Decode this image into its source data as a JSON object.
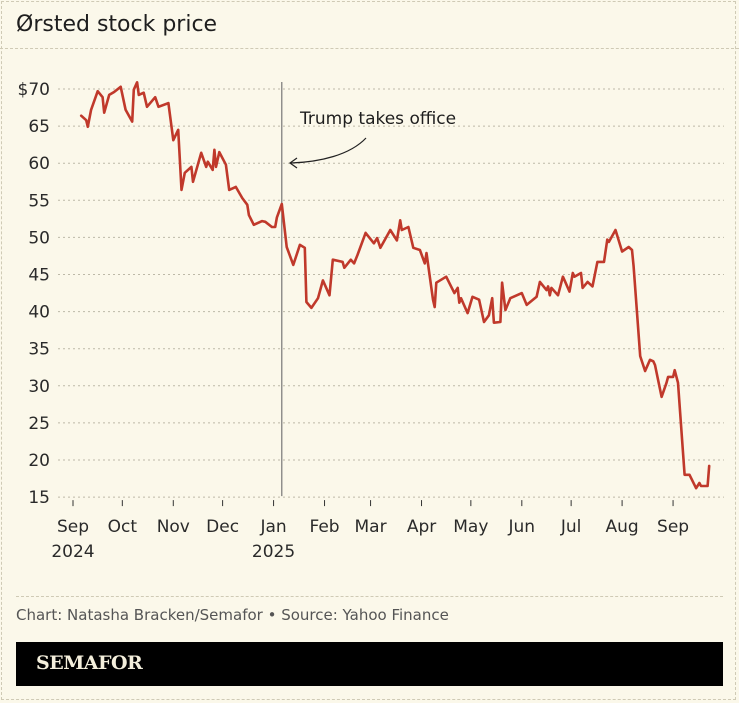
{
  "title": "Ørsted stock price",
  "credit": "Chart: Natasha Bracken/Semafor • Source: Yahoo Finance",
  "brand": "SEMAFOR",
  "chart_data": {
    "type": "line",
    "title": "Ørsted stock price",
    "xlabel": "",
    "ylabel": "",
    "ylim": [
      15,
      70
    ],
    "yticks": [
      70,
      65,
      60,
      55,
      50,
      45,
      40,
      35,
      30,
      25,
      20,
      15
    ],
    "ytick_labels": [
      "$70",
      "65",
      "60",
      "55",
      "50",
      "45",
      "40",
      "35",
      "30",
      "25",
      "20",
      "15"
    ],
    "xticks": [
      {
        "date": "2024-09-15",
        "label": "Sep",
        "year": "2024"
      },
      {
        "date": "2024-10-15",
        "label": "Oct",
        "year": ""
      },
      {
        "date": "2024-11-15",
        "label": "Nov",
        "year": ""
      },
      {
        "date": "2024-12-15",
        "label": "Dec",
        "year": ""
      },
      {
        "date": "2025-01-15",
        "label": "Jan",
        "year": "2025"
      },
      {
        "date": "2025-02-15",
        "label": "Feb",
        "year": ""
      },
      {
        "date": "2025-03-15",
        "label": "Mar",
        "year": ""
      },
      {
        "date": "2025-04-15",
        "label": "Apr",
        "year": ""
      },
      {
        "date": "2025-05-15",
        "label": "May",
        "year": ""
      },
      {
        "date": "2025-06-15",
        "label": "Jun",
        "year": ""
      },
      {
        "date": "2025-07-15",
        "label": "Jul",
        "year": ""
      },
      {
        "date": "2025-08-15",
        "label": "Aug",
        "year": ""
      },
      {
        "date": "2025-09-15",
        "label": "Sep",
        "year": ""
      }
    ],
    "grid": true,
    "line_color": "#c0392b",
    "annotation": {
      "date": "2025-01-20",
      "text": "Trump takes office"
    },
    "series": [
      {
        "x": [
          "2024-09-20",
          "2024-09-23",
          "2024-09-24",
          "2024-09-26",
          "2024-09-30",
          "2024-10-03",
          "2024-10-04",
          "2024-10-07",
          "2024-10-10",
          "2024-10-14",
          "2024-10-17",
          "2024-10-21",
          "2024-10-22",
          "2024-10-24",
          "2024-10-25",
          "2024-10-28",
          "2024-10-30",
          "2024-11-04",
          "2024-11-06",
          "2024-11-12",
          "2024-11-15",
          "2024-11-18",
          "2024-11-20",
          "2024-11-22",
          "2024-11-26",
          "2024-11-27",
          "2024-12-02",
          "2024-12-05",
          "2024-12-06",
          "2024-12-09",
          "2024-12-10",
          "2024-12-11",
          "2024-12-13",
          "2024-12-17",
          "2024-12-19",
          "2024-12-23",
          "2024-12-27",
          "2024-12-30",
          "2024-12-31",
          "2025-01-03",
          "2025-01-08",
          "2025-01-10",
          "2025-01-14",
          "2025-01-16",
          "2025-01-17",
          "2025-01-20",
          "2025-01-23",
          "2025-01-27",
          "2025-01-31",
          "2025-02-03",
          "2025-02-04",
          "2025-02-07",
          "2025-02-11",
          "2025-02-14",
          "2025-02-18",
          "2025-02-20",
          "2025-02-26",
          "2025-02-27",
          "2025-03-03",
          "2025-03-05",
          "2025-03-07",
          "2025-03-12",
          "2025-03-17",
          "2025-03-19",
          "2025-03-21",
          "2025-03-27",
          "2025-03-31",
          "2025-04-02",
          "2025-04-03",
          "2025-04-07",
          "2025-04-10",
          "2025-04-14",
          "2025-04-17",
          "2025-04-18",
          "2025-04-22",
          "2025-04-23",
          "2025-04-24",
          "2025-04-30",
          "2025-05-05",
          "2025-05-07",
          "2025-05-08",
          "2025-05-09",
          "2025-05-13",
          "2025-05-16",
          "2025-05-20",
          "2025-05-23",
          "2025-05-26",
          "2025-05-28",
          "2025-05-29",
          "2025-06-02",
          "2025-06-03",
          "2025-06-05",
          "2025-06-08",
          "2025-06-15",
          "2025-06-18",
          "2025-06-24",
          "2025-06-26",
          "2025-06-30",
          "2025-07-01",
          "2025-07-02",
          "2025-07-03",
          "2025-07-07",
          "2025-07-10",
          "2025-07-11",
          "2025-07-14",
          "2025-07-16",
          "2025-07-17",
          "2025-07-21",
          "2025-07-22",
          "2025-07-25",
          "2025-07-28",
          "2025-07-31",
          "2025-08-04",
          "2025-08-06",
          "2025-08-07",
          "2025-08-11",
          "2025-08-15",
          "2025-08-19",
          "2025-08-21",
          "2025-08-22",
          "2025-08-26",
          "2025-08-29",
          "2025-09-01",
          "2025-09-03",
          "2025-09-04",
          "2025-09-08",
          "2025-09-11",
          "2025-09-12",
          "2025-09-15",
          "2025-09-16",
          "2025-09-18",
          "2025-09-22",
          "2025-09-25",
          "2025-09-29",
          "2025-10-01",
          "2025-10-02",
          "2025-10-06",
          "2025-10-07"
        ],
        "values": [
          66.4,
          65.8,
          64.9,
          67.2,
          69.7,
          68.9,
          66.8,
          69.2,
          69.6,
          70.3,
          67.2,
          65.6,
          69.9,
          70.9,
          69.2,
          69.5,
          67.6,
          68.9,
          67.6,
          68.1,
          63.1,
          64.5,
          56.4,
          58.7,
          59.5,
          57.5,
          61.4,
          59.5,
          60.2,
          59.1,
          61.8,
          59.5,
          61.5,
          59.8,
          56.4,
          56.8,
          55.3,
          54.4,
          53.0,
          51.7,
          52.2,
          52.1,
          51.4,
          51.4,
          52.7,
          54.5,
          48.7,
          46.3,
          49.0,
          48.6,
          41.3,
          40.5,
          41.8,
          44.2,
          42.2,
          47.0,
          46.7,
          45.9,
          47.0,
          46.5,
          47.6,
          50.6,
          49.2,
          49.9,
          48.6,
          51.0,
          49.6,
          52.3,
          51.0,
          51.4,
          48.6,
          48.3,
          46.5,
          47.9,
          41.6,
          40.6,
          43.9,
          44.7,
          42.5,
          43.2,
          41.2,
          41.8,
          39.8,
          42.0,
          41.6,
          38.6,
          39.5,
          41.8,
          38.5,
          38.6,
          43.9,
          40.2,
          41.8,
          42.5,
          40.9,
          42.0,
          44.0,
          42.9,
          43.4,
          42.2,
          43.2,
          42.2,
          44.7,
          44.2,
          42.7,
          45.2,
          44.7,
          45.2,
          43.2,
          44.0,
          43.4,
          46.7,
          46.7,
          49.7,
          49.4,
          51.0,
          48.1,
          48.7,
          48.3,
          46.1,
          34.0,
          32.0,
          33.5,
          33.3,
          32.8,
          28.5,
          30.4,
          31.2,
          31.2,
          32.1,
          30.4,
          18.0,
          18.0,
          16.2,
          16.9,
          16.5,
          16.5,
          19.2
        ]
      }
    ]
  }
}
